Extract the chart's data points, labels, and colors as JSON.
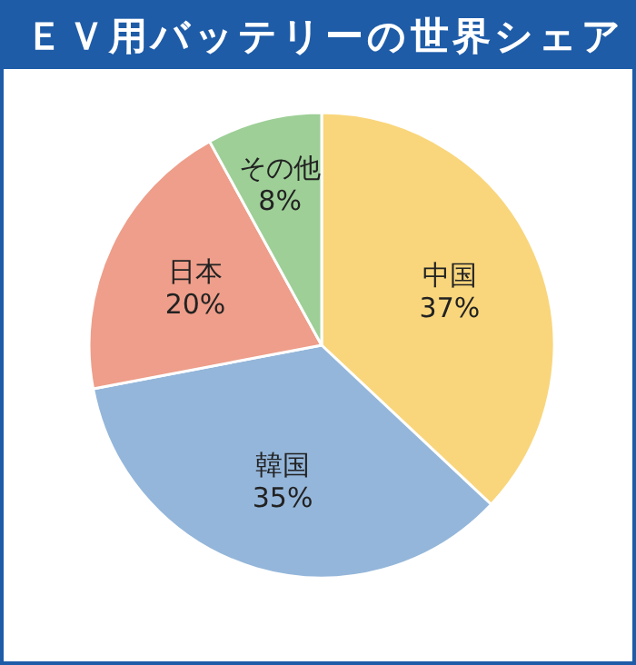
{
  "chart_data": {
    "type": "pie",
    "title": "ＥＶ用バッテリーの世界シェア",
    "categories": [
      "中国",
      "韓国",
      "日本",
      "その他"
    ],
    "values": [
      37,
      35,
      20,
      8
    ],
    "colors": [
      "#f9d67c",
      "#94b6da",
      "#ee9e8a",
      "#9dcf96"
    ],
    "value_labels": [
      "37%",
      "35%",
      "20%",
      "8%"
    ]
  }
}
